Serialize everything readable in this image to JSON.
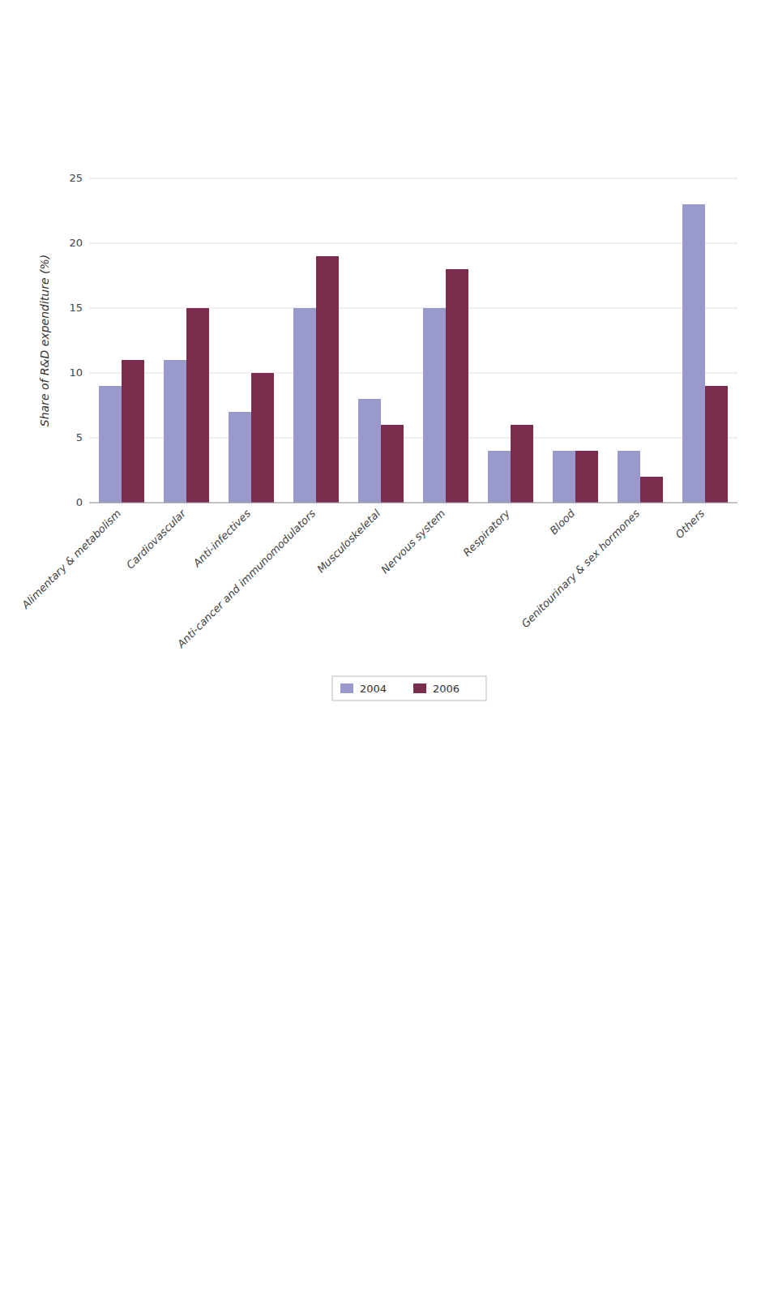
{
  "chart_data": {
    "type": "bar",
    "categories": [
      "Alimentary & metabolism",
      "Cardiovascular",
      "Anti-infectives",
      "Anti-cancer and immunomodulators",
      "Musculoskeletal",
      "Nervous system",
      "Respiratory",
      "Blood",
      "Genitourinary & sex hormones",
      "Others"
    ],
    "series": [
      {
        "name": "2004",
        "color": "#9999cc",
        "values": [
          9,
          11,
          7,
          15,
          8,
          15,
          4,
          4,
          4,
          23
        ]
      },
      {
        "name": "2006",
        "color": "#7b2d4e",
        "values": [
          11,
          15,
          10,
          19,
          6,
          18,
          6,
          4,
          2,
          9
        ]
      }
    ],
    "ylabel": "Share of R&D expenditure (%)",
    "ylim": [
      0,
      25
    ],
    "yticks": [
      0,
      5,
      10,
      15,
      20,
      25
    ],
    "grid": true,
    "legend": "bottom"
  }
}
